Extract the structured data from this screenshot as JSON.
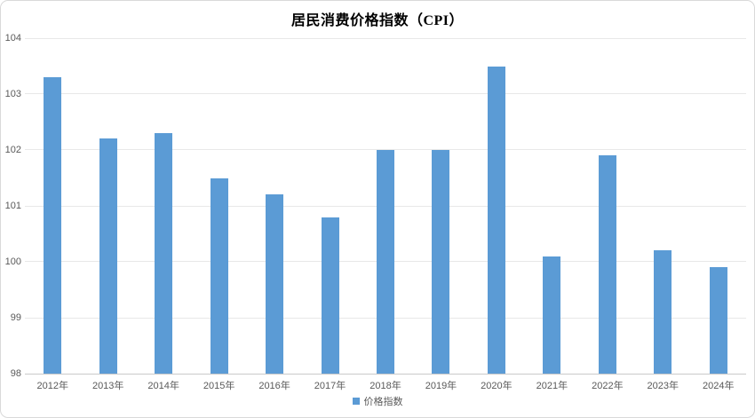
{
  "chart_data": {
    "type": "bar",
    "title": "居民消费价格指数（CPI）",
    "xlabel": "",
    "ylabel": "",
    "categories": [
      "2012年",
      "2013年",
      "2014年",
      "2015年",
      "2016年",
      "2017年",
      "2018年",
      "2019年",
      "2020年",
      "2021年",
      "2022年",
      "2023年",
      "2024年"
    ],
    "series": [
      {
        "name": "价格指数",
        "values": [
          103.3,
          102.2,
          102.3,
          101.5,
          101.2,
          100.8,
          102.0,
          102.0,
          103.5,
          100.1,
          101.9,
          100.2,
          99.9
        ]
      }
    ],
    "ylim": [
      98,
      104
    ],
    "yticks": [
      98,
      99,
      100,
      101,
      102,
      103,
      104
    ],
    "grid": true,
    "legend_position": "bottom",
    "legend_label": "价格指数",
    "colors": {
      "bar": "#5B9BD5",
      "gridline": "#e8e8e8",
      "axis_line": "#c9c9c9",
      "tick_label": "#595959",
      "title": "#000000"
    }
  }
}
